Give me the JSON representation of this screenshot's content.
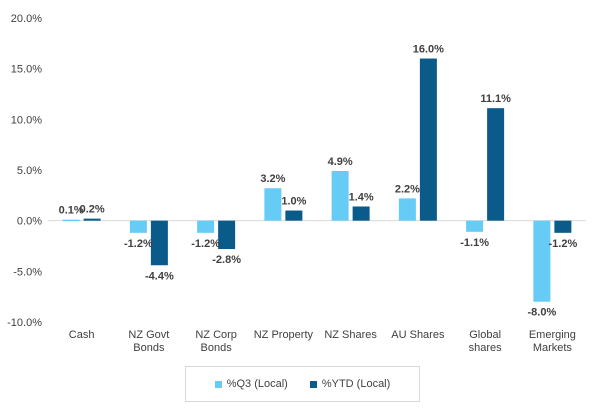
{
  "chart_data": {
    "type": "bar",
    "categories": [
      [
        "Cash"
      ],
      [
        "NZ Govt",
        "Bonds"
      ],
      [
        "NZ Corp",
        "Bonds"
      ],
      [
        "NZ Property"
      ],
      [
        "NZ Shares"
      ],
      [
        "AU Shares"
      ],
      [
        "Global",
        "shares"
      ],
      [
        "Emerging",
        "Markets"
      ]
    ],
    "series": [
      {
        "name": "%Q3 (Local)",
        "color": "#66ccf5",
        "values": [
          0.1,
          -1.2,
          -1.2,
          3.2,
          4.9,
          2.2,
          -1.1,
          -8.0
        ],
        "labels": [
          "0.1%",
          "-1.2%",
          "-1.2%",
          "3.2%",
          "4.9%",
          "2.2%",
          "-1.1%",
          "-8.0%"
        ]
      },
      {
        "name": "%YTD (Local)",
        "color": "#0a5a8a",
        "values": [
          0.2,
          -4.4,
          -2.8,
          1.0,
          1.4,
          16.0,
          11.1,
          -1.2
        ],
        "labels": [
          "0.2%",
          "-4.4%",
          "-2.8%",
          "1.0%",
          "1.4%",
          "16.0%",
          "11.1%",
          "-1.2%"
        ]
      }
    ],
    "ylim": [
      -10,
      20
    ],
    "yticks": [
      20,
      15,
      10,
      5,
      0,
      -5,
      -10
    ],
    "ytick_labels": [
      "20.0%",
      "15.0%",
      "10.0%",
      "5.0%",
      "0.0%",
      "-5.0%",
      "-10.0%"
    ],
    "grid": false,
    "legend": "bottom"
  }
}
